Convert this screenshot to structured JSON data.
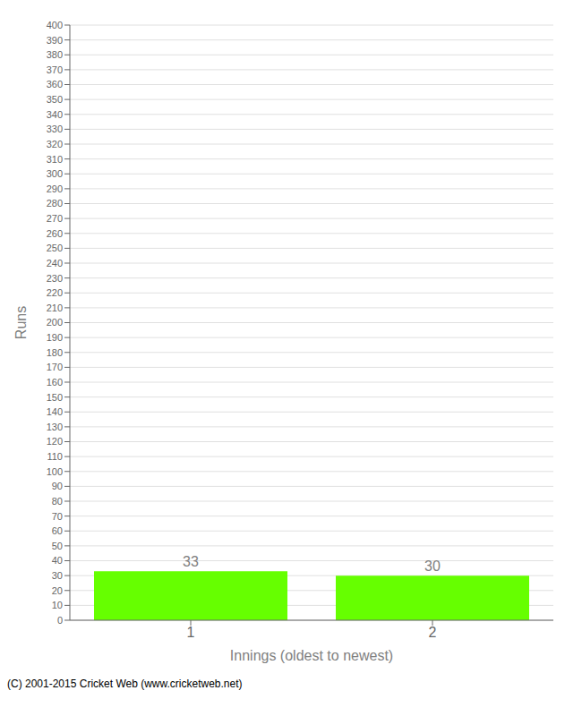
{
  "chart_data": {
    "type": "bar",
    "xlabel": "Innings (oldest to newest)",
    "ylabel": "Runs",
    "categories": [
      "1",
      "2"
    ],
    "values": [
      33,
      30
    ],
    "color": "#66ff00",
    "ylim": [
      0,
      400
    ],
    "yticks": [
      0,
      10,
      20,
      30,
      40,
      50,
      60,
      70,
      80,
      90,
      100,
      110,
      120,
      130,
      140,
      150,
      160,
      170,
      180,
      190,
      200,
      210,
      220,
      230,
      240,
      250,
      260,
      270,
      280,
      290,
      300,
      310,
      320,
      330,
      340,
      350,
      360,
      370,
      380,
      390,
      400
    ],
    "grid": true,
    "data_labels": true,
    "annotations": [
      "(C) 2001-2015 Cricket Web (www.cricketweb.net)"
    ]
  }
}
